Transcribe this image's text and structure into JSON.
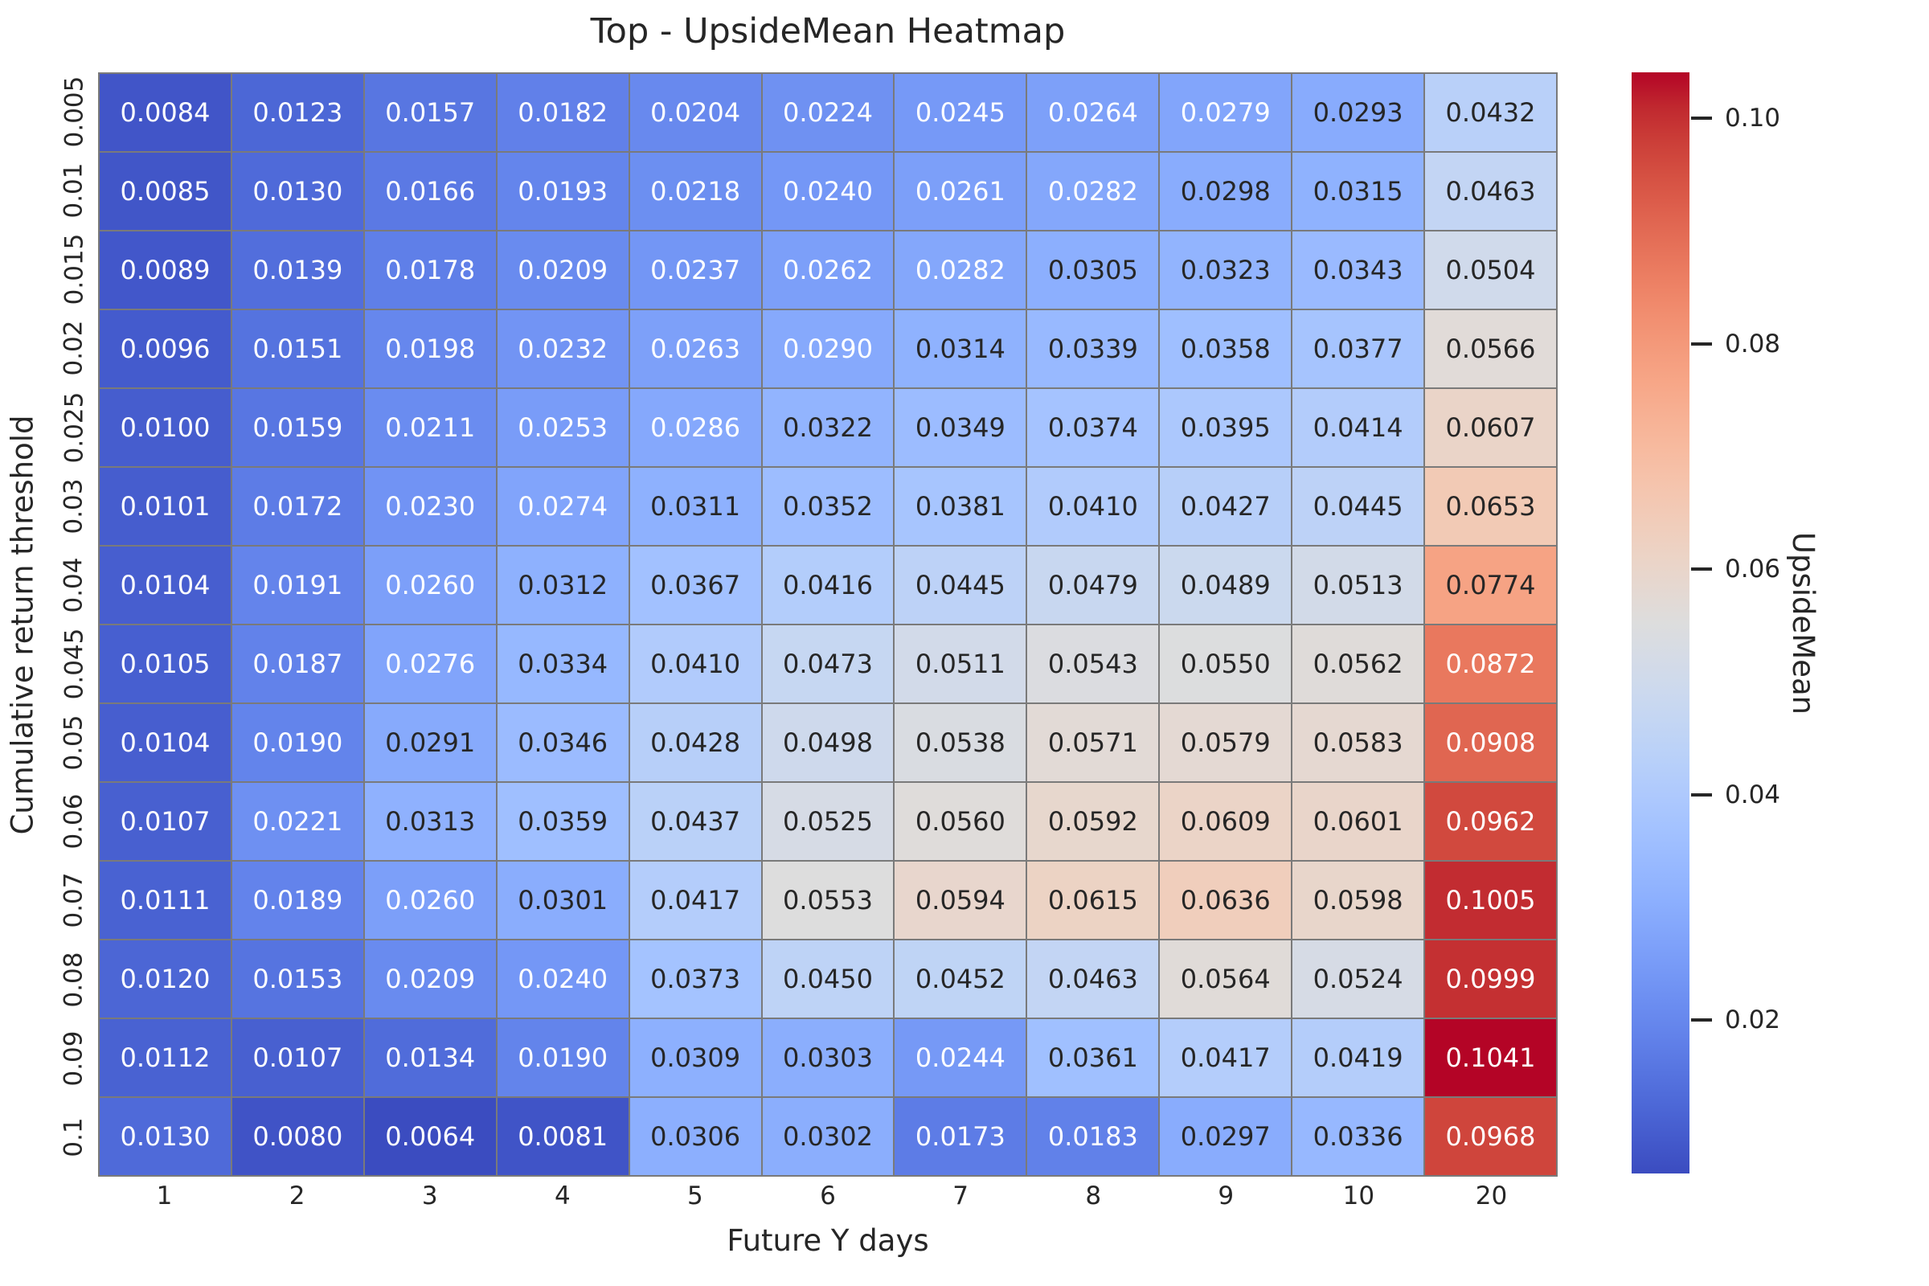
{
  "figure": {
    "background_color": "#ffffff",
    "grid_line_color": "#7a7a7a",
    "annotation_dark_color": "#262626",
    "annotation_light_color": "#ffffff"
  },
  "chart_data": {
    "type": "heatmap",
    "title": "Top - UpsideMean Heatmap",
    "xlabel": "Future Y days",
    "ylabel": "Cumulative return threshold",
    "x_labels": [
      "1",
      "2",
      "3",
      "4",
      "5",
      "6",
      "7",
      "8",
      "9",
      "10",
      "20"
    ],
    "y_labels": [
      "0.005",
      "0.01",
      "0.015",
      "0.02",
      "0.025",
      "0.03",
      "0.04",
      "0.045",
      "0.05",
      "0.06",
      "0.07",
      "0.08",
      "0.09",
      "0.1"
    ],
    "values": [
      [
        0.0084,
        0.0123,
        0.0157,
        0.0182,
        0.0204,
        0.0224,
        0.0245,
        0.0264,
        0.0279,
        0.0293,
        0.0432
      ],
      [
        0.0085,
        0.013,
        0.0166,
        0.0193,
        0.0218,
        0.024,
        0.0261,
        0.0282,
        0.0298,
        0.0315,
        0.0463
      ],
      [
        0.0089,
        0.0139,
        0.0178,
        0.0209,
        0.0237,
        0.0262,
        0.0282,
        0.0305,
        0.0323,
        0.0343,
        0.0504
      ],
      [
        0.0096,
        0.0151,
        0.0198,
        0.0232,
        0.0263,
        0.029,
        0.0314,
        0.0339,
        0.0358,
        0.0377,
        0.0566
      ],
      [
        0.01,
        0.0159,
        0.0211,
        0.0253,
        0.0286,
        0.0322,
        0.0349,
        0.0374,
        0.0395,
        0.0414,
        0.0607
      ],
      [
        0.0101,
        0.0172,
        0.023,
        0.0274,
        0.0311,
        0.0352,
        0.0381,
        0.041,
        0.0427,
        0.0445,
        0.0653
      ],
      [
        0.0104,
        0.0191,
        0.026,
        0.0312,
        0.0367,
        0.0416,
        0.0445,
        0.0479,
        0.0489,
        0.0513,
        0.0774
      ],
      [
        0.0105,
        0.0187,
        0.0276,
        0.0334,
        0.041,
        0.0473,
        0.0511,
        0.0543,
        0.055,
        0.0562,
        0.0872
      ],
      [
        0.0104,
        0.019,
        0.0291,
        0.0346,
        0.0428,
        0.0498,
        0.0538,
        0.0571,
        0.0579,
        0.0583,
        0.0908
      ],
      [
        0.0107,
        0.0221,
        0.0313,
        0.0359,
        0.0437,
        0.0525,
        0.056,
        0.0592,
        0.0609,
        0.0601,
        0.0962
      ],
      [
        0.0111,
        0.0189,
        0.026,
        0.0301,
        0.0417,
        0.0553,
        0.0594,
        0.0615,
        0.0636,
        0.0598,
        0.1005
      ],
      [
        0.012,
        0.0153,
        0.0209,
        0.024,
        0.0373,
        0.045,
        0.0452,
        0.0463,
        0.0564,
        0.0524,
        0.0999
      ],
      [
        0.0112,
        0.0107,
        0.0134,
        0.019,
        0.0309,
        0.0303,
        0.0244,
        0.0361,
        0.0417,
        0.0419,
        0.1041
      ],
      [
        0.013,
        0.008,
        0.0064,
        0.0081,
        0.0306,
        0.0302,
        0.0173,
        0.0183,
        0.0297,
        0.0336,
        0.0968
      ]
    ],
    "value_decimals": 4,
    "colormap": "coolwarm",
    "vmin": 0.0064,
    "vmax": 0.1041,
    "legend_position": "right",
    "grid": "cell-borders",
    "colorbar": {
      "label": "UpsideMean",
      "tick_labels": [
        "0.10",
        "0.08",
        "0.06",
        "0.04",
        "0.02"
      ],
      "tick_values": [
        0.1,
        0.08,
        0.06,
        0.04,
        0.02
      ]
    }
  }
}
